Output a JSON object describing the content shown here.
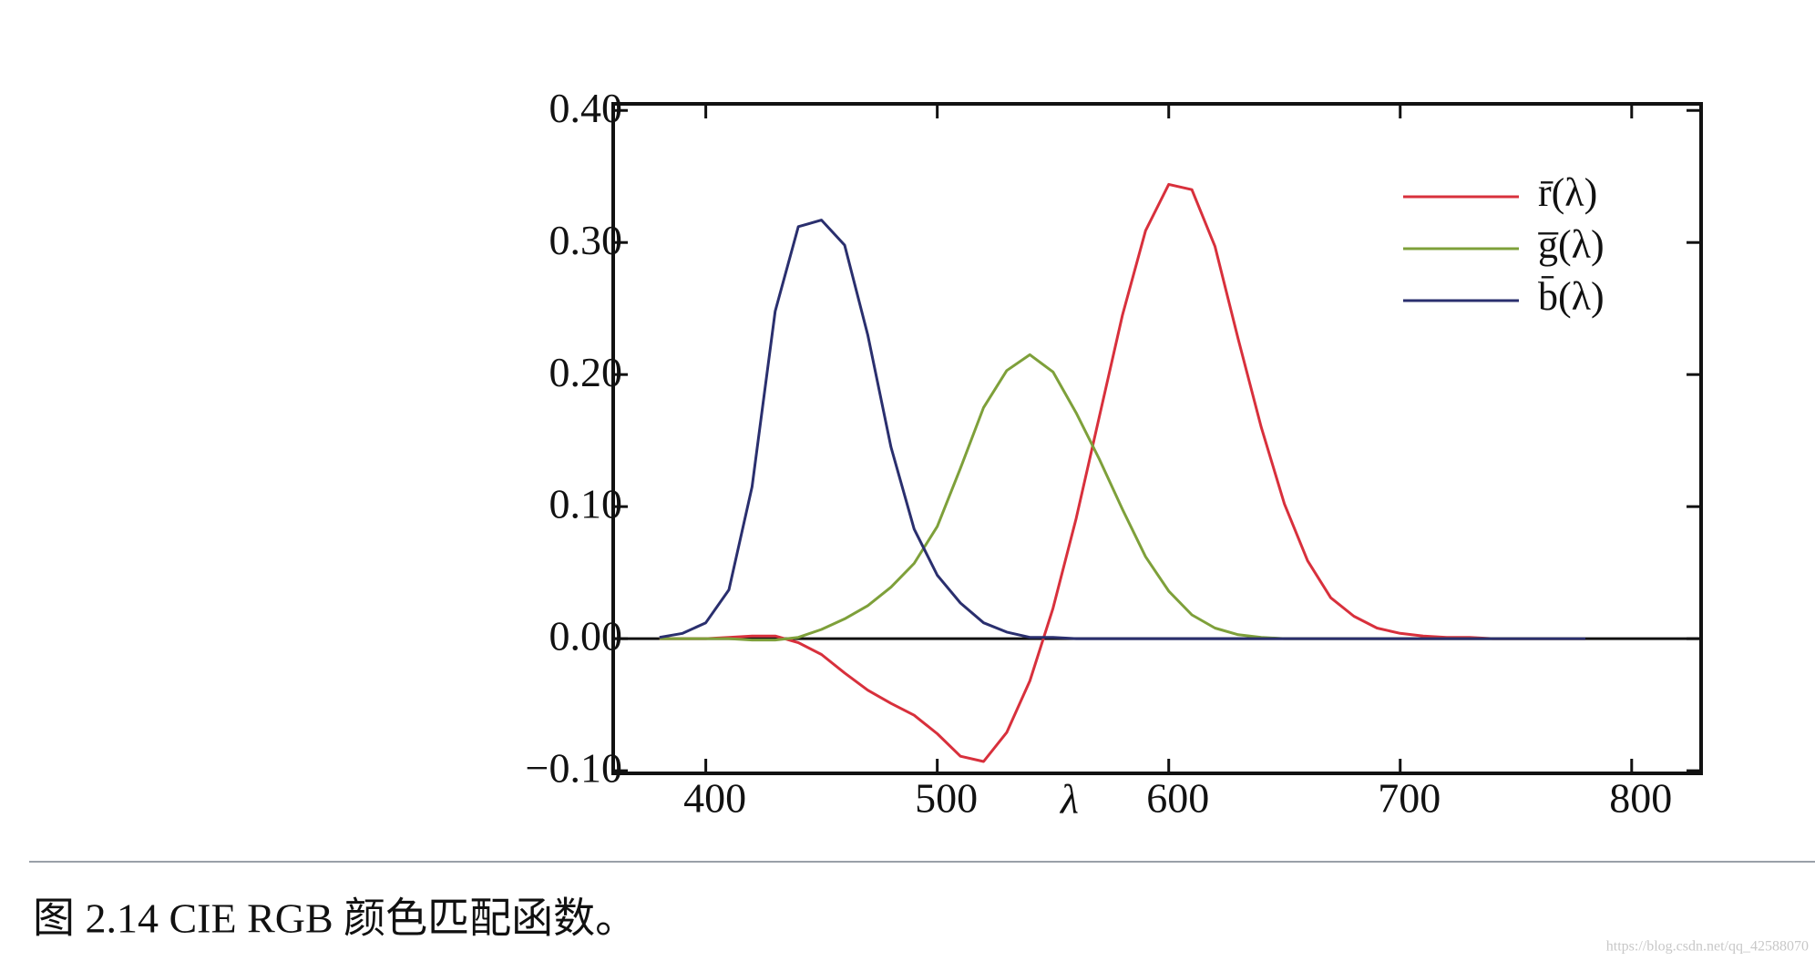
{
  "chart_data": {
    "type": "line",
    "x_label": "λ",
    "caption": "图 2.14 CIE RGB 颜色匹配函数。",
    "watermark": "https://blog.csdn.net/qq_42588070",
    "x": [
      380,
      390,
      400,
      410,
      420,
      430,
      440,
      450,
      460,
      470,
      480,
      490,
      500,
      510,
      520,
      530,
      540,
      550,
      560,
      570,
      580,
      590,
      600,
      610,
      620,
      630,
      640,
      650,
      660,
      670,
      680,
      690,
      700,
      710,
      720,
      730,
      740,
      750,
      760,
      770,
      780
    ],
    "series": [
      {
        "name": "r̄(λ)",
        "color": "#d8303c",
        "values": [
          0.0,
          0.0,
          0.0,
          0.001,
          0.002,
          0.002,
          -0.003,
          -0.012,
          -0.026,
          -0.039,
          -0.049,
          -0.058,
          -0.072,
          -0.089,
          -0.093,
          -0.071,
          -0.032,
          0.023,
          0.091,
          0.168,
          0.245,
          0.309,
          0.344,
          0.34,
          0.297,
          0.227,
          0.16,
          0.102,
          0.059,
          0.031,
          0.017,
          0.008,
          0.004,
          0.002,
          0.001,
          0.001,
          0.0,
          0.0,
          0.0,
          0.0,
          0.0
        ]
      },
      {
        "name": "g̅(λ)",
        "color": "#7ea03a",
        "values": [
          0.0,
          0.0,
          0.0,
          0.0,
          -0.001,
          -0.001,
          0.001,
          0.007,
          0.015,
          0.025,
          0.039,
          0.057,
          0.085,
          0.129,
          0.175,
          0.203,
          0.215,
          0.202,
          0.171,
          0.136,
          0.098,
          0.062,
          0.036,
          0.018,
          0.008,
          0.003,
          0.001,
          0.0,
          0.0,
          0.0,
          0.0,
          0.0,
          0.0,
          0.0,
          0.0,
          0.0,
          0.0,
          0.0,
          0.0,
          0.0,
          0.0
        ]
      },
      {
        "name": "b̄(λ)",
        "color": "#2a2f6e",
        "values": [
          0.001,
          0.004,
          0.012,
          0.037,
          0.115,
          0.248,
          0.312,
          0.317,
          0.298,
          0.23,
          0.145,
          0.083,
          0.048,
          0.027,
          0.012,
          0.005,
          0.001,
          0.001,
          0.0,
          0.0,
          0.0,
          0.0,
          0.0,
          0.0,
          0.0,
          0.0,
          0.0,
          0.0,
          0.0,
          0.0,
          0.0,
          0.0,
          0.0,
          0.0,
          0.0,
          0.0,
          0.0,
          0.0,
          0.0,
          0.0,
          0.0
        ]
      }
    ],
    "xlim": [
      360,
      830
    ],
    "xticks": [
      400,
      500,
      600,
      700,
      800
    ],
    "ylim": [
      -0.102,
      0.405
    ],
    "yticks": [
      {
        "value": 0.4,
        "label": "0.40"
      },
      {
        "value": 0.3,
        "label": "0.30"
      },
      {
        "value": 0.2,
        "label": "0.20"
      },
      {
        "value": 0.1,
        "label": "0.10"
      },
      {
        "value": 0,
        "label": "0.00"
      },
      {
        "value": -0.1,
        "label": "−0.10"
      }
    ],
    "legend": "upper right"
  }
}
